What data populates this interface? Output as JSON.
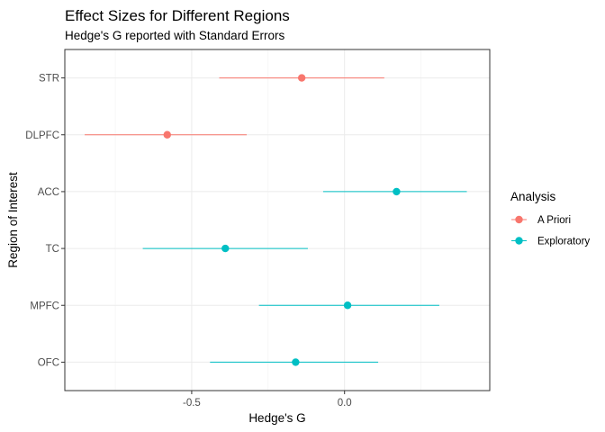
{
  "chart_data": {
    "type": "scatter",
    "title": "Effect Sizes for Different Regions",
    "subtitle": "Hedge's G reported with Standard Errors",
    "xlabel": "Hedge's G",
    "ylabel": "Region of Interest",
    "xlim": [
      -0.915,
      0.475
    ],
    "x_ticks": [
      -0.5,
      0.0
    ],
    "x_tick_labels": [
      "-0.5",
      "0.0"
    ],
    "categories": [
      "STR",
      "DLPFC",
      "ACC",
      "TC",
      "MPFC",
      "OFC"
    ],
    "grid": true,
    "legend": {
      "title": "Analysis",
      "position": "right",
      "entries": [
        {
          "label": "A Priori",
          "color": "#F8766D"
        },
        {
          "label": "Exploratory",
          "color": "#00BFC4"
        }
      ]
    },
    "series": [
      {
        "name": "A Priori",
        "color": "#F8766D",
        "points": [
          {
            "category": "STR",
            "x": -0.14,
            "xmin": -0.41,
            "xmax": 0.13
          },
          {
            "category": "DLPFC",
            "x": -0.58,
            "xmin": -0.85,
            "xmax": -0.32
          }
        ]
      },
      {
        "name": "Exploratory",
        "color": "#00BFC4",
        "points": [
          {
            "category": "ACC",
            "x": 0.17,
            "xmin": -0.07,
            "xmax": 0.4
          },
          {
            "category": "TC",
            "x": -0.39,
            "xmin": -0.66,
            "xmax": -0.12
          },
          {
            "category": "MPFC",
            "x": 0.01,
            "xmin": -0.28,
            "xmax": 0.31
          },
          {
            "category": "OFC",
            "x": -0.16,
            "xmin": -0.44,
            "xmax": 0.11
          }
        ]
      }
    ]
  }
}
